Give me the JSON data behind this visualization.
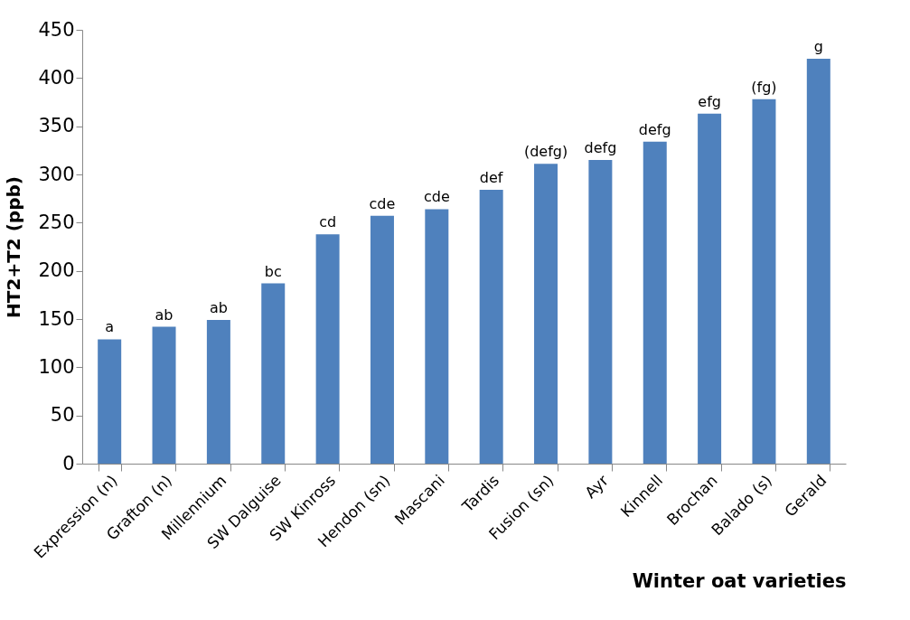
{
  "chart_data": {
    "type": "bar",
    "xlabel": "Winter oat varieties",
    "ylabel": "HT2+T2 (ppb)",
    "categories": [
      "Expression (n)",
      "Grafton (n)",
      "Millennium",
      "SW Dalguise",
      "SW Kinross",
      "Hendon (sn)",
      "Mascani",
      "Tardis",
      "Fusion (sn)",
      "Ayr",
      "Kinnell",
      "Brochan",
      "Balado (s)",
      "Gerald"
    ],
    "values": [
      129,
      142,
      149,
      187,
      238,
      257,
      264,
      284,
      311,
      315,
      334,
      363,
      378,
      420
    ],
    "color": "#4f81bd",
    "ylim": [
      0,
      450
    ],
    "yticks": [
      0,
      50,
      100,
      150,
      200,
      250,
      300,
      350,
      400,
      450
    ],
    "grid": false,
    "annotations": [
      {
        "text": "a",
        "x": "Expression (n)",
        "y": 129
      },
      {
        "text": "ab",
        "x": "Grafton (n)",
        "y": 142
      },
      {
        "text": "ab",
        "x": "Millennium",
        "y": 149
      },
      {
        "text": "bc",
        "x": "SW Dalguise",
        "y": 187
      },
      {
        "text": "cd",
        "x": "SW Kinross",
        "y": 238
      },
      {
        "text": "cde",
        "x": "Hendon (sn)",
        "y": 257
      },
      {
        "text": "cde",
        "x": "Mascani",
        "y": 264
      },
      {
        "text": "def",
        "x": "Tardis",
        "y": 284
      },
      {
        "text": "(defg)",
        "x": "Fusion (sn)",
        "y": 311
      },
      {
        "text": "defg",
        "x": "Ayr",
        "y": 315
      },
      {
        "text": "defg",
        "x": "Kinnell",
        "y": 334
      },
      {
        "text": "efg",
        "x": "Brochan",
        "y": 363
      },
      {
        "text": "(fg)",
        "x": "Balado (s)",
        "y": 378
      },
      {
        "text": "g",
        "x": "Gerald",
        "y": 420
      }
    ]
  }
}
